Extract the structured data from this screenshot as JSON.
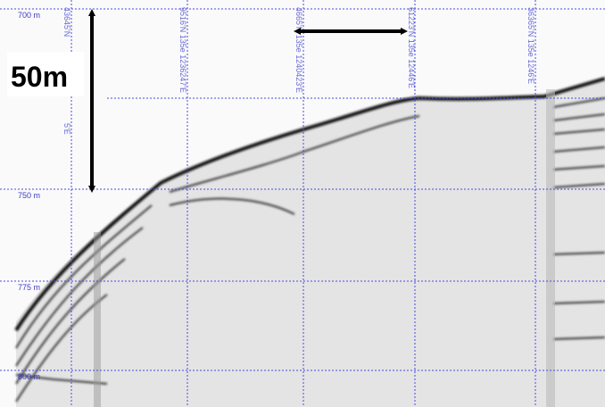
{
  "scale_label": "50m",
  "depth_labels": [
    "700 m",
    "750 m",
    "775 m",
    "800 m"
  ],
  "track_labels": [
    "43645'N",
    "5'E",
    "9516'N 135e 1236247'E",
    "4665'N 135e 1240423'E",
    "61223'N 135e 12446'E",
    "36365'N 135e 1246'E"
  ]
}
